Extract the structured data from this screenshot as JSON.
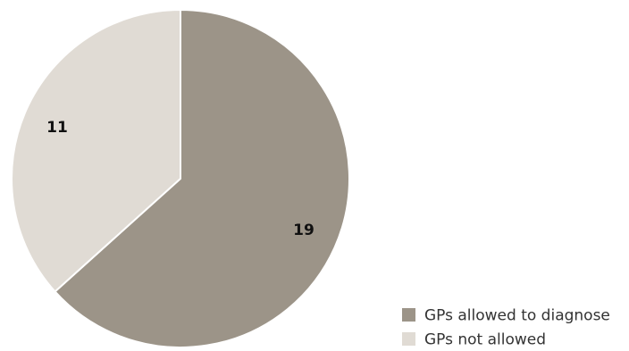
{
  "chart_data": {
    "type": "pie",
    "title": "",
    "start_angle_deg": 0,
    "direction": "clockwise",
    "legend_position": "bottom-right",
    "slices": [
      {
        "label": "GPs allowed to diagnose",
        "value": 19,
        "display": "19",
        "color": "#9c9488"
      },
      {
        "label": "GPs not allowed",
        "value": 11,
        "display": "11",
        "color": "#e0dbd4"
      }
    ]
  }
}
